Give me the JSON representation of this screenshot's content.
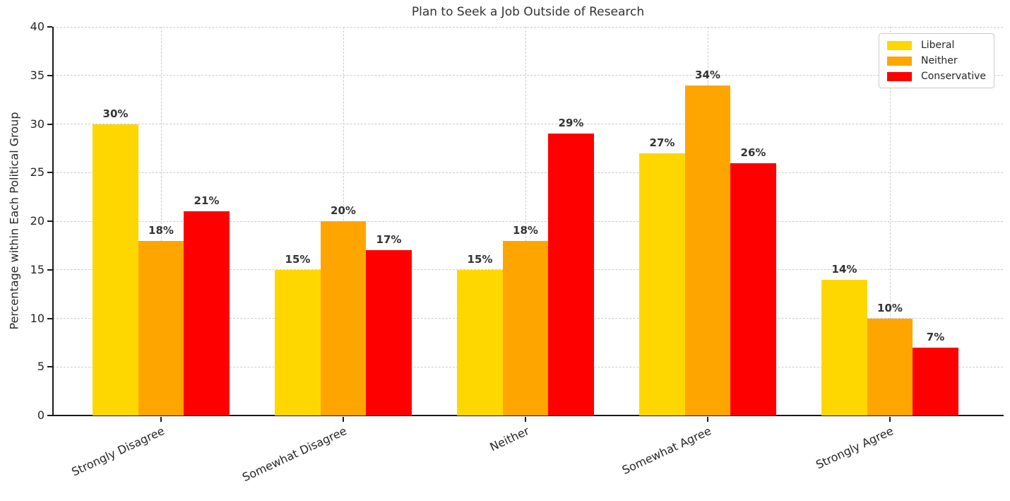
{
  "chart_data": {
    "type": "bar",
    "title": "Plan to Seek a Job Outside of Research",
    "xlabel": "",
    "ylabel": "Percentage within Each Political Group",
    "categories": [
      "Strongly Disagree",
      "Somewhat Disagree",
      "Neither",
      "Somewhat Agree",
      "Strongly Agree"
    ],
    "series": [
      {
        "name": "Liberal",
        "color": "#FFD700",
        "values": [
          30,
          15,
          15,
          27,
          14
        ]
      },
      {
        "name": "Neither",
        "color": "#FFA500",
        "values": [
          18,
          20,
          18,
          34,
          10
        ]
      },
      {
        "name": "Conservative",
        "color": "#FF0000",
        "values": [
          21,
          17,
          29,
          26,
          7
        ]
      }
    ],
    "value_label_suffix": "%",
    "ylim": [
      0,
      40
    ],
    "yticks": [
      0,
      5,
      10,
      15,
      20,
      25,
      30,
      35,
      40
    ],
    "grid": "dashed, horizontal and vertical",
    "legend_position": "upper right"
  }
}
